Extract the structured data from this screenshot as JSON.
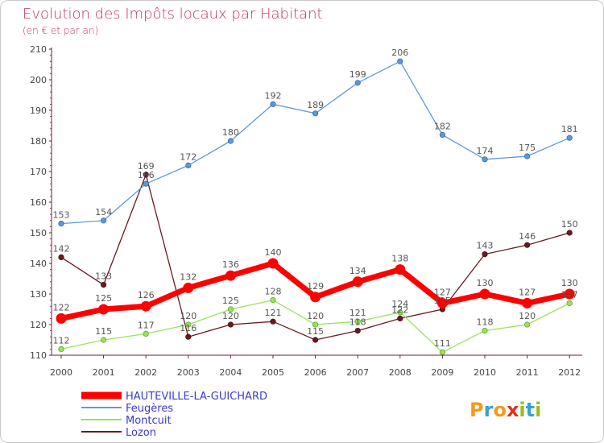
{
  "chart_data": {
    "type": "line",
    "title": "Evolution des Impôts locaux par Habitant",
    "subtitle": "(en € et par an)",
    "xlabel": "",
    "ylabel": "",
    "categories": [
      "2000",
      "2001",
      "2002",
      "2003",
      "2004",
      "2005",
      "2006",
      "2007",
      "2008",
      "2009",
      "2010",
      "2011",
      "2012"
    ],
    "ylim": [
      110,
      210
    ],
    "yticks": [
      110,
      120,
      130,
      140,
      150,
      160,
      170,
      180,
      190,
      200,
      210
    ],
    "grid": false,
    "legend_position": "bottom-left",
    "series": [
      {
        "name": "HAUTEVILLE-LA-GUICHARD",
        "color": "#ff0000",
        "values": [
          122,
          125,
          126,
          132,
          136,
          140,
          129,
          134,
          138,
          127,
          130,
          127,
          130
        ]
      },
      {
        "name": "Feugères",
        "color": "#5d9ad3",
        "values": [
          153,
          154,
          166,
          172,
          180,
          192,
          189,
          199,
          206,
          182,
          174,
          175,
          181
        ]
      },
      {
        "name": "Montcuit",
        "color": "#99e35c",
        "values": [
          112,
          115,
          117,
          120,
          125,
          128,
          120,
          121,
          124,
          111,
          118,
          120,
          127
        ]
      },
      {
        "name": "Lozon",
        "color": "#6a1a1f",
        "values": [
          142,
          133,
          169,
          116,
          120,
          121,
          115,
          118,
          122,
          125,
          143,
          146,
          150
        ]
      }
    ],
    "data_labels": [
      [
        "122",
        "125",
        "126",
        "132",
        "136",
        "140",
        "129",
        "134",
        "138",
        "127",
        "130",
        "127",
        "130"
      ],
      [
        "153",
        "154",
        "166",
        "172",
        "180",
        "192",
        "189",
        "199",
        "206",
        "182",
        "174",
        "175",
        "181"
      ],
      [
        "112",
        "115",
        "117",
        "120",
        "125",
        "128",
        "120",
        "121",
        "124",
        "111",
        "118",
        "120",
        "127"
      ],
      [
        "142",
        "133",
        "169",
        "116",
        "120",
        "121",
        "115",
        "118",
        "122",
        "125",
        "143",
        "146",
        "150"
      ]
    ]
  },
  "watermark": {
    "text": "Proxiti",
    "colors": [
      "#f39a1a",
      "#3a9fd8",
      "#f39a1a",
      "#e0301e",
      "#93c01f",
      "#3a9fd8",
      "#93c01f"
    ]
  }
}
